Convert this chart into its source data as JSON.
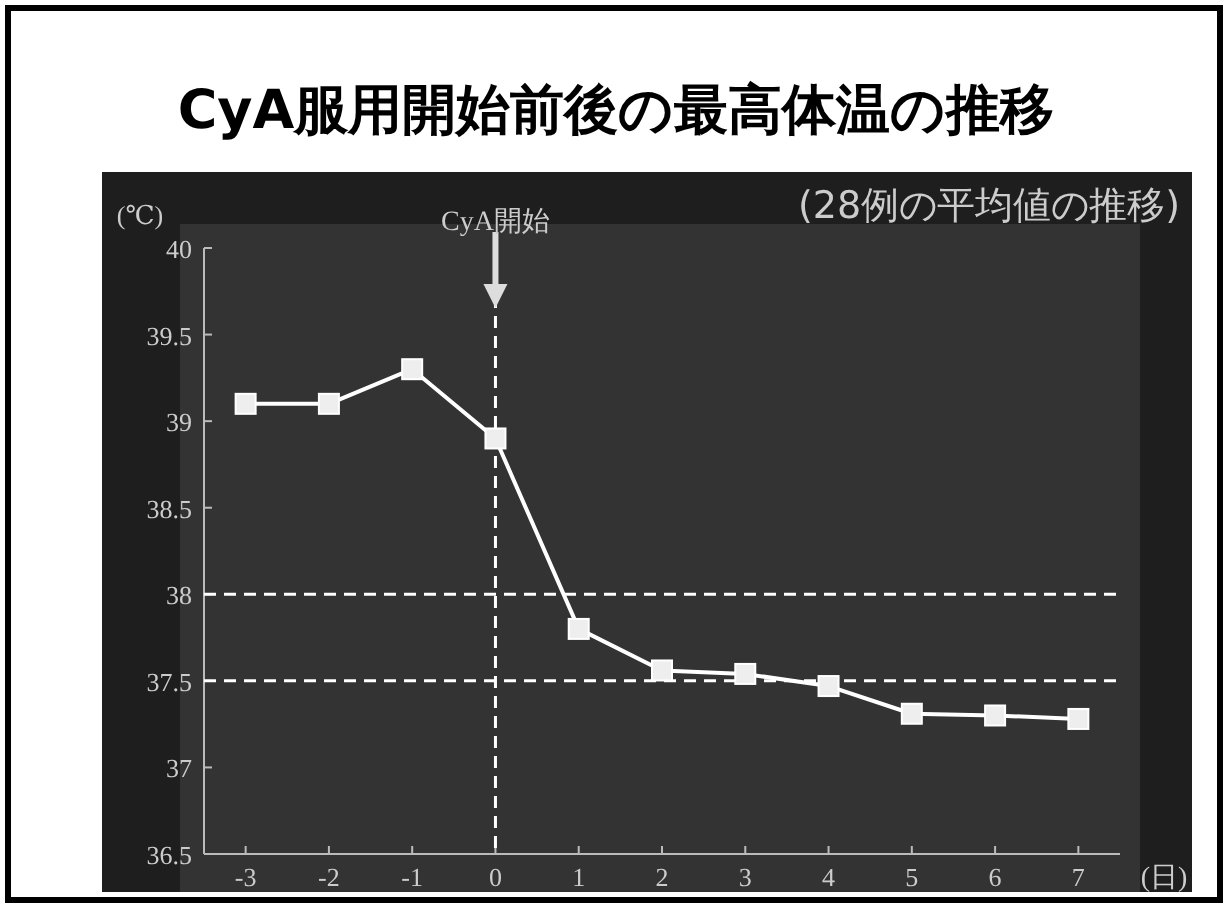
{
  "chart_data": {
    "type": "line",
    "title": "CyA服用開始前後の最高体温の推移",
    "subtitle": "(28例の平均値の推移)",
    "xlabel": "(日)",
    "ylabel": "(℃)",
    "x": [
      -3,
      -2,
      -1,
      0,
      1,
      2,
      3,
      4,
      5,
      6,
      7
    ],
    "series": [
      {
        "color": "#ffffff",
        "values": [
          39.1,
          39.1,
          39.3,
          38.9,
          37.8,
          37.56,
          37.54,
          37.47,
          37.31,
          37.3,
          37.28
        ]
      }
    ],
    "xlim": [
      -3.5,
      7.5
    ],
    "xticks": [
      -3,
      -2,
      -1,
      0,
      1,
      2,
      3,
      4,
      5,
      6,
      7
    ],
    "ylim": [
      36.5,
      40
    ],
    "yticks": [
      36.5,
      37,
      37.5,
      38,
      38.5,
      39,
      39.5,
      40
    ],
    "ref_lines": [
      {
        "axis": "x",
        "value": 0,
        "label": "CyA開始",
        "line_style": "dashed",
        "color": "#ffffff"
      },
      {
        "axis": "y",
        "value": 38,
        "line_style": "dashed",
        "color": "#ffffff"
      },
      {
        "axis": "y",
        "value": 37.5,
        "line_style": "dashed",
        "color": "#ffffff"
      }
    ],
    "marker": "square",
    "line_style": "solid",
    "grid": false
  }
}
